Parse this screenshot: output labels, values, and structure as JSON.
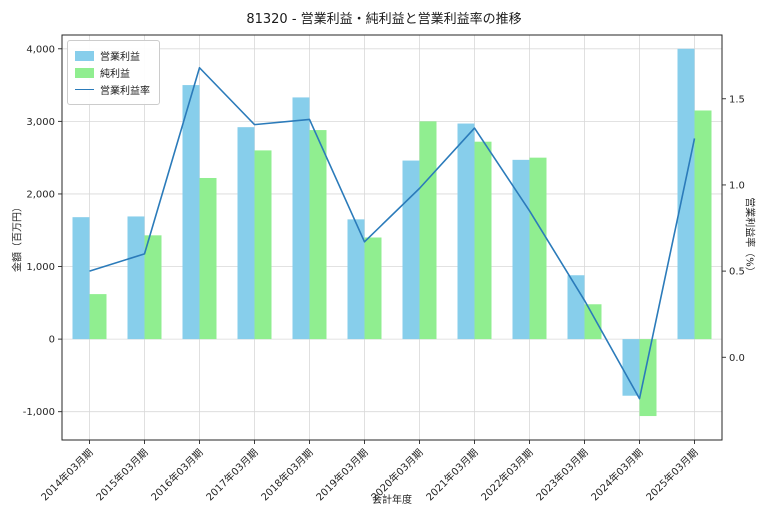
{
  "chart_data": {
    "type": "bar",
    "title": "81320 - 営業利益・純利益と営業利益率の推移",
    "xlabel": "会計年度",
    "ylabel_left": "金額（百万円）",
    "ylabel_right": "営業利益率（%）",
    "categories": [
      "2014年03月期",
      "2015年03月期",
      "2016年03月期",
      "2017年03月期",
      "2018年03月期",
      "2019年03月期",
      "2020年03月期",
      "2021年03月期",
      "2022年03月期",
      "2023年03月期",
      "2024年03月期",
      "2025年03月期"
    ],
    "series": [
      {
        "name": "営業利益",
        "type": "bar",
        "axis": "left",
        "color": "#87CEEB",
        "values": [
          1680,
          1690,
          3500,
          2920,
          3330,
          1650,
          2460,
          2970,
          2470,
          880,
          -780,
          4000
        ]
      },
      {
        "name": "純利益",
        "type": "bar",
        "axis": "left",
        "color": "#90EE90",
        "values": [
          620,
          1430,
          2220,
          2600,
          2880,
          1400,
          3000,
          2720,
          2500,
          480,
          -1060,
          3150
        ]
      },
      {
        "name": "営業利益率",
        "type": "line",
        "axis": "right",
        "color": "#2b7bba",
        "values": [
          0.5,
          0.6,
          1.68,
          1.35,
          1.38,
          0.67,
          0.98,
          1.33,
          0.85,
          0.33,
          -0.24,
          1.27
        ]
      }
    ],
    "left_axis": {
      "ticks": [
        -1000,
        0,
        1000,
        2000,
        3000,
        4000
      ],
      "range": [
        -1390,
        4190
      ]
    },
    "right_axis": {
      "ticks": [
        0.0,
        0.5,
        1.0,
        1.5
      ],
      "range": [
        -0.48,
        1.87
      ]
    },
    "grid": true,
    "legend_position": "upper left",
    "colors": {
      "grid": "#d9d9d9",
      "spine": "#262626",
      "tick_text": "#262626"
    }
  }
}
